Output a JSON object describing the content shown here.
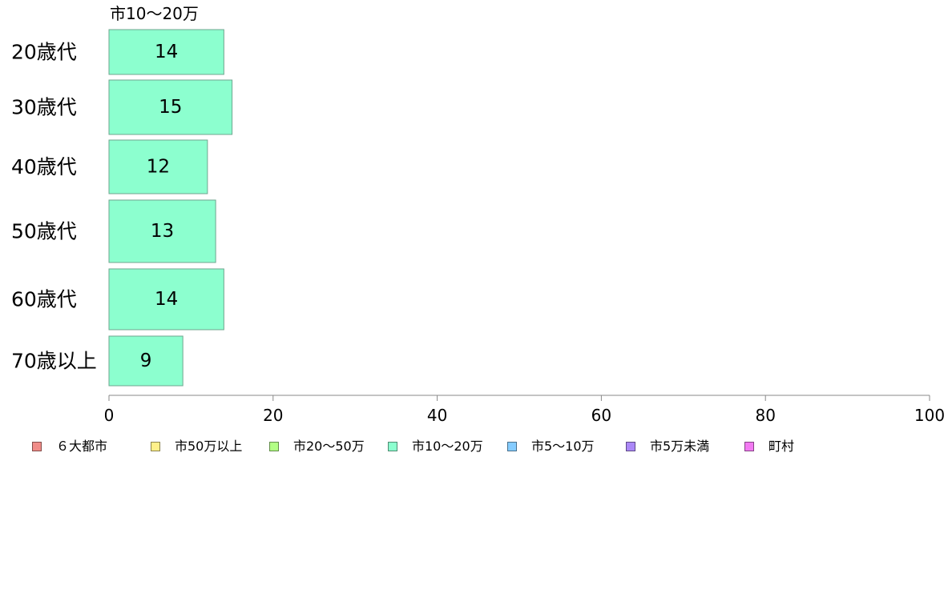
{
  "chart_data": {
    "type": "bar",
    "orientation": "horizontal",
    "title": "市10〜20万",
    "categories": [
      "20歳代",
      "30歳代",
      "40歳代",
      "50歳代",
      "60歳代",
      "70歳以上"
    ],
    "series": [
      {
        "name": "市10〜20万",
        "values": [
          14,
          15,
          12,
          13,
          14,
          9
        ],
        "color": "#8cffcf"
      }
    ],
    "data_labels": [
      "14",
      "15",
      "12",
      "13",
      "14",
      "9"
    ],
    "xlim": [
      0,
      100
    ],
    "xticks": [
      0,
      20,
      40,
      60,
      80,
      100
    ],
    "xtick_labels": [
      "0",
      "20",
      "40",
      "60",
      "80",
      "100"
    ],
    "grid": false,
    "legend": {
      "placement": "bottom",
      "items": [
        {
          "label": "６大都市",
          "color": "#f08c88"
        },
        {
          "label": "市50万以上",
          "color": "#fff08a"
        },
        {
          "label": "市20〜50万",
          "color": "#b2ff85"
        },
        {
          "label": "市10〜20万",
          "color": "#8cffcf"
        },
        {
          "label": "市5〜10万",
          "color": "#85ccff"
        },
        {
          "label": "市5万未満",
          "color": "#ab88f7"
        },
        {
          "label": "町村",
          "color": "#f27af2"
        }
      ]
    }
  }
}
